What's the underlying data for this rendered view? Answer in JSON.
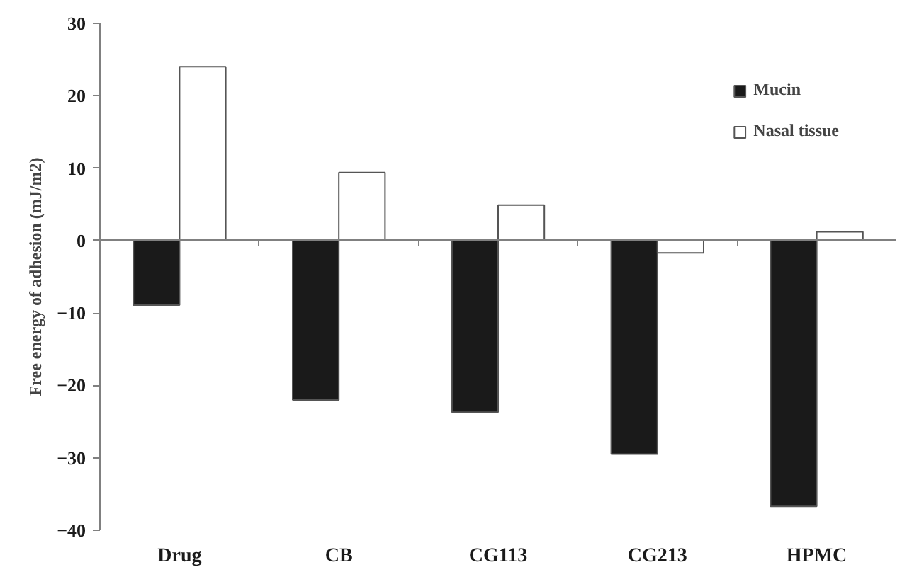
{
  "chart_data": {
    "type": "bar",
    "ylabel": "Free energy of adhesion (mJ/m2)",
    "categories": [
      "Drug",
      "CB",
      "CG113",
      "CG213",
      "HPMC"
    ],
    "series": [
      {
        "name": "Mucin",
        "color": "#1a1a1a",
        "values": [
          -8.9,
          -22.0,
          -23.7,
          -29.5,
          -36.7
        ]
      },
      {
        "name": "Nasal tissue",
        "color": "#ffffff",
        "values": [
          24,
          9.4,
          4.9,
          -1.7,
          1.2
        ]
      }
    ],
    "ylim": [
      -40,
      30
    ],
    "yticks": [
      -40,
      -30,
      -20,
      -10,
      0,
      10,
      20,
      30
    ],
    "legend": "top right"
  }
}
